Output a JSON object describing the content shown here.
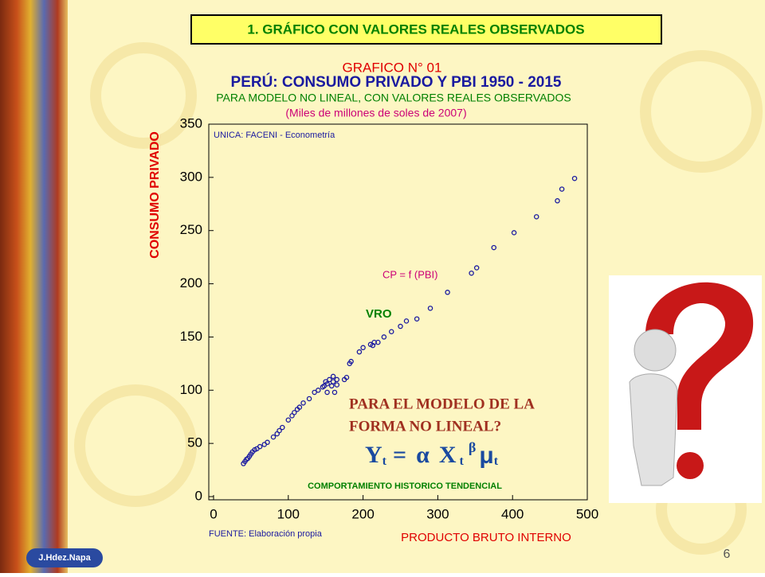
{
  "header": "1. GRÁFICO CON VALORES REALES OBSERVADOS",
  "author": "J.Hdez.Napa",
  "page_number": "6",
  "chart_data": {
    "type": "scatter",
    "label": "GRAFICO N° 01",
    "title": "PERÚ: CONSUMO PRIVADO Y PBI 1950 - 2015",
    "subtitle": "PARA MODELO NO LINEAL, CON VALORES REALES OBSERVADOS",
    "units": "(Miles de millones de soles de 2007)",
    "xlabel": "PRODUCTO BRUTO INTERNO",
    "ylabel": "CONSUMO PRIVADO",
    "source": "FUENTE: Elaboración propia",
    "annotations": [
      "UNICA: FACENI - Econometría",
      "CP = f (PBI)",
      "COMPORTAMIENTO HISTORICO TENDENCIAL"
    ],
    "question": [
      "PARA EL MODELO DE LA",
      "FORMA NO LINEAL?"
    ],
    "formula": {
      "y": "Y",
      "t1": "t",
      "eq": "=",
      "alpha": "α",
      "x": "X",
      "t2": "t",
      "beta": "β",
      "mu": "μ",
      "t3": "t"
    },
    "xlim": [
      0,
      500
    ],
    "ylim": [
      0,
      350
    ],
    "xticks": [
      0,
      100,
      200,
      300,
      400,
      500
    ],
    "yticks": [
      0,
      50,
      100,
      150,
      200,
      250,
      300,
      350
    ],
    "series": [
      {
        "name": "VRO",
        "color": "#1a1aa0",
        "x": [
          40,
          42,
          44,
          46,
          48,
          50,
          52,
          55,
          58,
          62,
          68,
          72,
          80,
          85,
          88,
          92,
          100,
          105,
          108,
          112,
          115,
          120,
          128,
          135,
          140,
          146,
          148,
          150,
          152,
          152,
          155,
          158,
          160,
          160,
          162,
          165,
          165,
          175,
          178,
          182,
          184,
          195,
          200,
          210,
          213,
          215,
          220,
          228,
          238,
          250,
          258,
          272,
          290,
          313,
          345,
          352,
          375,
          402,
          432,
          460,
          466,
          483
        ],
        "values": [
          31,
          33,
          35,
          36,
          38,
          40,
          42,
          44,
          45,
          47,
          49,
          51,
          56,
          59,
          62,
          65,
          72,
          76,
          79,
          82,
          84,
          88,
          92,
          98,
          100,
          103,
          104,
          108,
          106,
          98,
          110,
          104,
          113,
          108,
          98,
          105,
          110,
          110,
          112,
          125,
          127,
          136,
          140,
          143,
          142,
          145,
          145,
          150,
          155,
          160,
          165,
          167,
          177,
          192,
          210,
          215,
          234,
          248,
          263,
          278,
          289,
          299
        ]
      }
    ]
  }
}
